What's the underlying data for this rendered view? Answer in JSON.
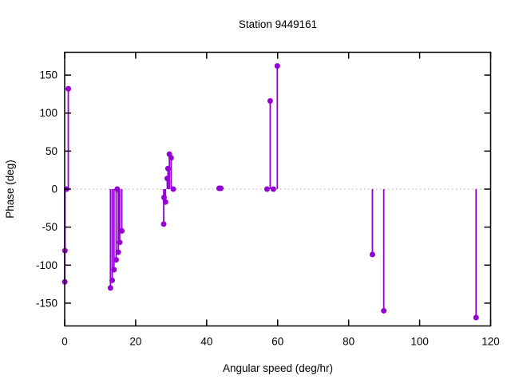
{
  "page": {
    "background": "#ffffff"
  },
  "chart_data": {
    "type": "scatter",
    "subtype": "impulses-with-points",
    "title": "Station 9449161",
    "xlabel": "Angular speed (deg/hr)",
    "ylabel": "Phase (deg)",
    "xlim": [
      0,
      120
    ],
    "ylim": [
      -180,
      180
    ],
    "xticks": [
      0,
      20,
      40,
      60,
      80,
      100,
      120
    ],
    "yticks": [
      -150,
      -100,
      -50,
      0,
      50,
      100,
      150
    ],
    "grid": "off",
    "legend": "none",
    "zero_line": {
      "y": 0,
      "style": "dotted",
      "color": "#a8a8a8"
    },
    "series_color": "#9400d3",
    "border_color": "#000000",
    "marker": "filled-circle",
    "points": [
      [
        0.04,
        -122
      ],
      [
        0.08,
        -81
      ],
      [
        0.54,
        0
      ],
      [
        1.02,
        132
      ],
      [
        12.9,
        -130
      ],
      [
        13.4,
        -120
      ],
      [
        13.9,
        -106
      ],
      [
        14.5,
        -93
      ],
      [
        14.8,
        0
      ],
      [
        15.1,
        -83
      ],
      [
        15.5,
        -70
      ],
      [
        16.1,
        -55
      ],
      [
        27.9,
        -46
      ],
      [
        28.0,
        -11
      ],
      [
        28.4,
        -17
      ],
      [
        28.9,
        14
      ],
      [
        29.1,
        27
      ],
      [
        29.5,
        46
      ],
      [
        30.0,
        41
      ],
      [
        30.6,
        0
      ],
      [
        43.5,
        1
      ],
      [
        44.0,
        1
      ],
      [
        57.0,
        0
      ],
      [
        57.9,
        116
      ],
      [
        58.8,
        0
      ],
      [
        59.9,
        162
      ],
      [
        86.7,
        -86
      ],
      [
        89.9,
        -160
      ],
      [
        115.9,
        -169
      ]
    ]
  }
}
